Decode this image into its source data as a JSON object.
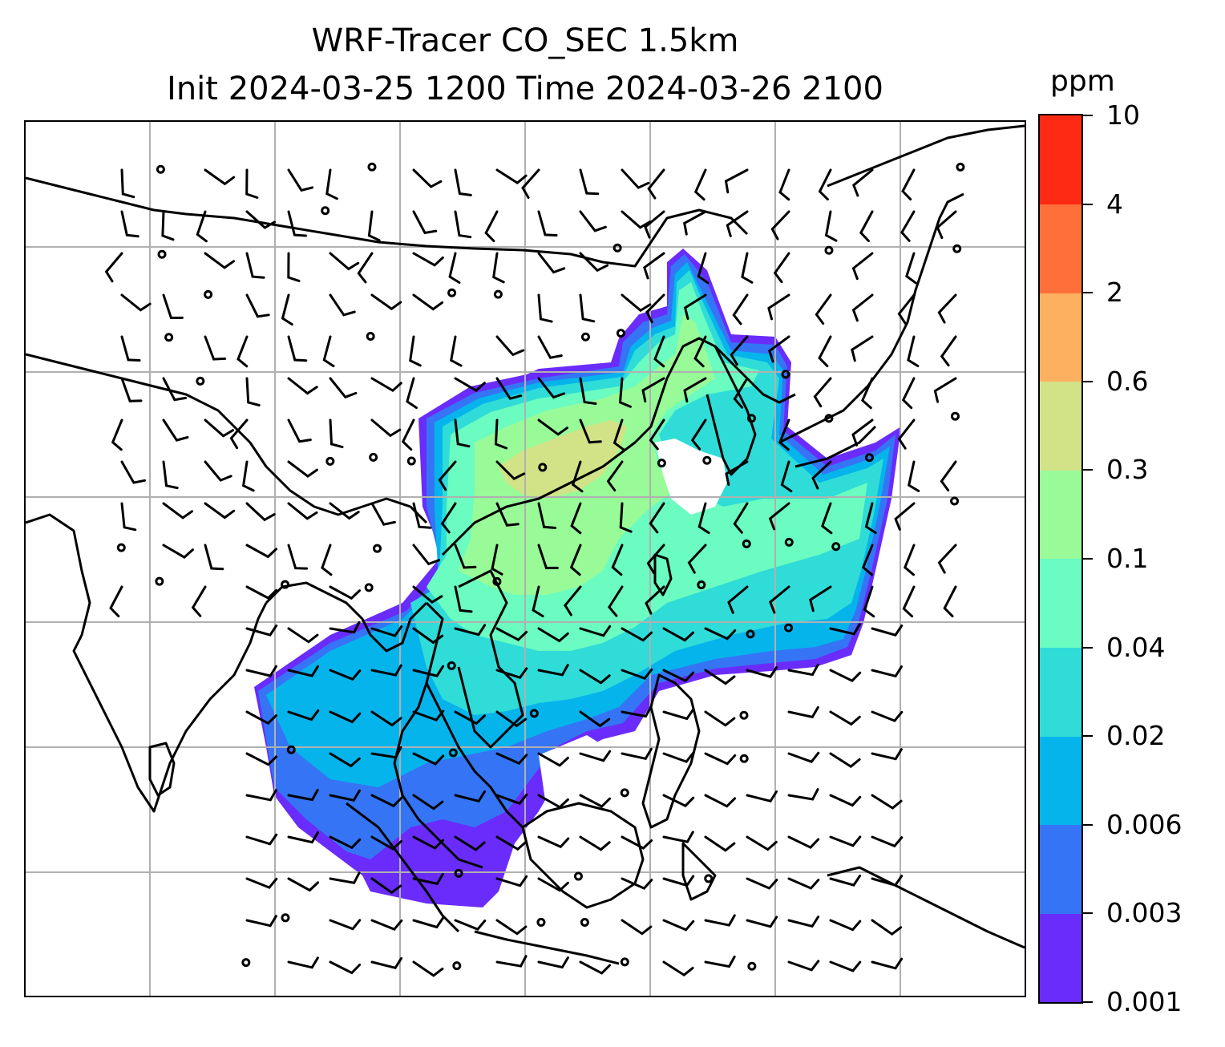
{
  "title": {
    "line1": "WRF-Tracer CO_SEC 1.5km",
    "line2": "Init 2024-03-25 1200 Time 2024-03-26 2100"
  },
  "colorbar": {
    "unit": "ppm",
    "levels": [
      "0.001",
      "0.003",
      "0.006",
      "0.02",
      "0.04",
      "0.1",
      "0.3",
      "0.6",
      "2",
      "4",
      "10"
    ],
    "colors": [
      "#6a2cfb",
      "#3575f5",
      "#06b4ec",
      "#2fdcd8",
      "#6afcc0",
      "#98fb98",
      "#d2e286",
      "#feb061",
      "#fe6f3a",
      "#fe2a14"
    ]
  },
  "map": {
    "field": "CO_SEC tracer concentration at 1.5 km",
    "overlays": [
      "coastlines",
      "gridlines",
      "wind-barbs"
    ]
  }
}
